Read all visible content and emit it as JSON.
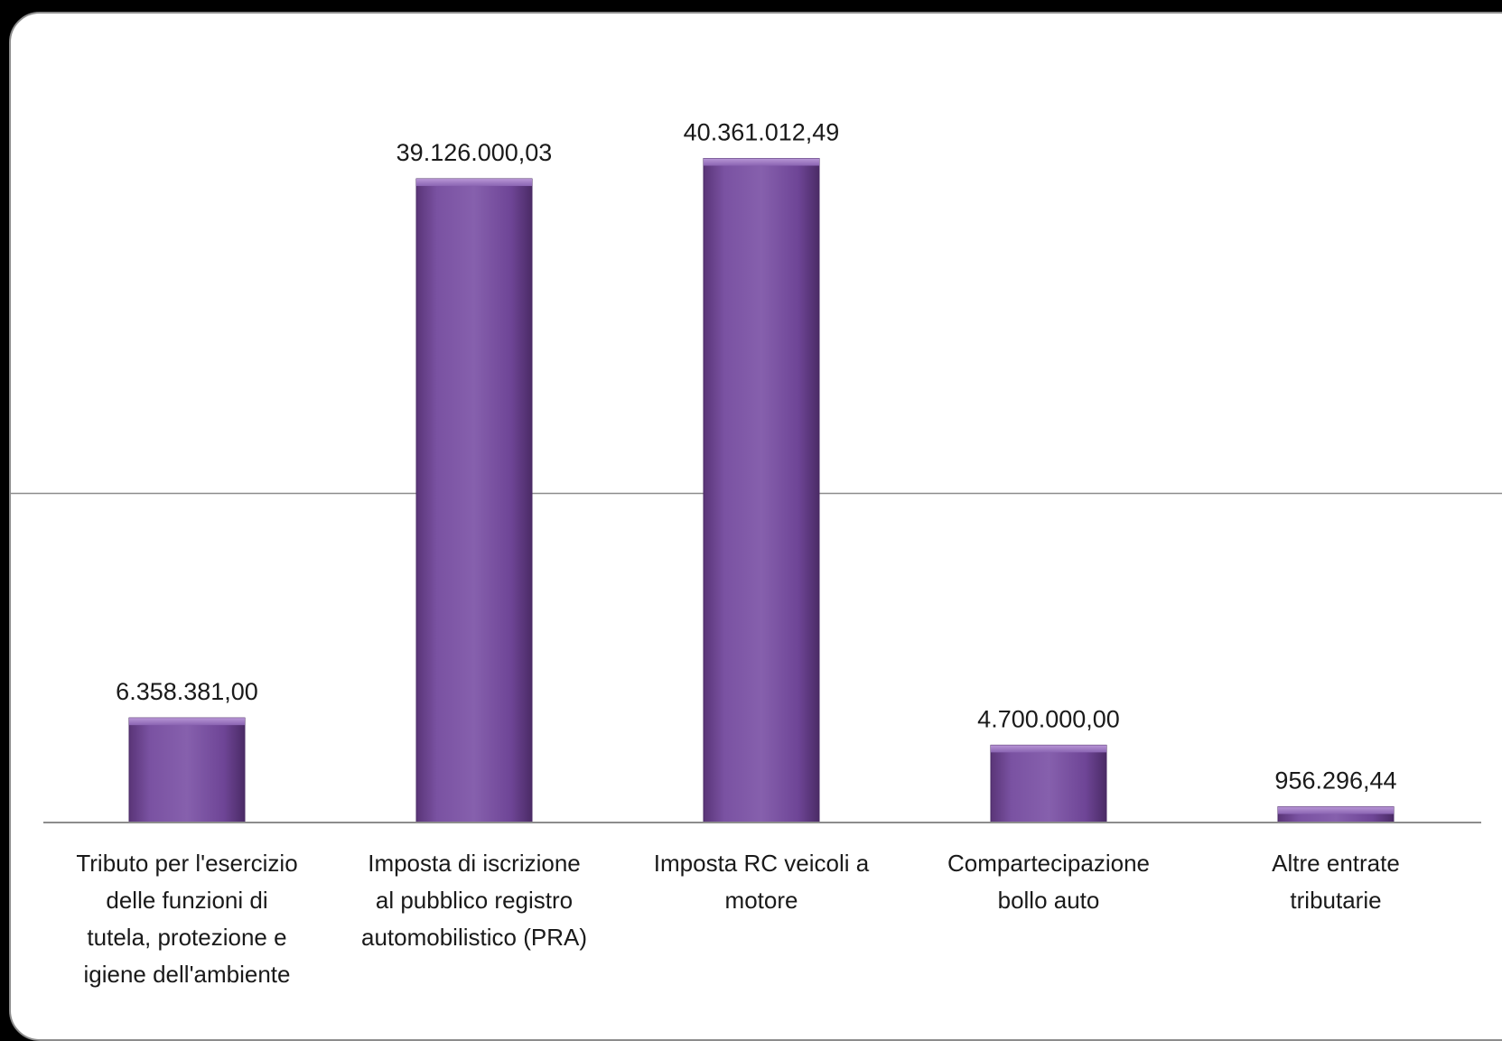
{
  "chart_data": {
    "type": "bar",
    "categories": [
      [
        "Tributo per l'esercizio",
        "delle funzioni di",
        "tutela, protezione e",
        "igiene dell'ambiente"
      ],
      [
        "Imposta di iscrizione",
        "al pubblico registro",
        "automobilistico (PRA)"
      ],
      [
        "Imposta RC veicoli a",
        "motore"
      ],
      [
        "Compartecipazione",
        "bollo auto"
      ],
      [
        "Altre entrate",
        "tributarie"
      ]
    ],
    "values": [
      6358381.0,
      39126000.03,
      40361012.49,
      4700000.0,
      956296.44
    ],
    "data_labels": [
      "6.358.381,00",
      "39.126.000,03",
      "40.361.012,49",
      "4.700.000,00",
      "956.296,44"
    ],
    "ylim": [
      0,
      45000000
    ],
    "gridlines": [
      20000000
    ],
    "bar_color": "#7b4fa0",
    "grid": true,
    "legend": "none"
  }
}
